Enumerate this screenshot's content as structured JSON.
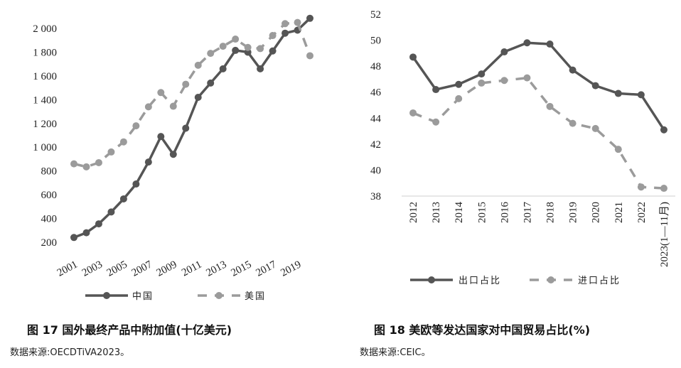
{
  "chart_data": [
    {
      "type": "line",
      "caption": "图 17  国外最终产品中附加值(十亿美元)",
      "source": "数据来源:OECDTiVA2023。",
      "x": [
        2001,
        2002,
        2003,
        2004,
        2005,
        2006,
        2007,
        2008,
        2009,
        2010,
        2011,
        2012,
        2013,
        2014,
        2015,
        2016,
        2017,
        2018,
        2019,
        2020
      ],
      "x_tick_labels": [
        "2001",
        "2003",
        "2005",
        "2007",
        "2009",
        "2011",
        "2013",
        "2015",
        "2017",
        "2019"
      ],
      "y_tick_labels": [
        "200",
        "400",
        "600",
        "800",
        "1 000",
        "1 200",
        "1 400",
        "1 600",
        "1 800",
        "2 000"
      ],
      "ylim": [
        200,
        2000
      ],
      "grid": false,
      "legend_position": "bottom",
      "series": [
        {
          "name": "中国",
          "style": "solid",
          "color": "#555555",
          "values": [
            240,
            280,
            355,
            455,
            565,
            690,
            875,
            1090,
            940,
            1160,
            1420,
            1540,
            1660,
            1815,
            1800,
            1660,
            1810,
            1960,
            1985,
            2085
          ]
        },
        {
          "name": "美国",
          "style": "dashed",
          "color": "#9b9b9b",
          "values": [
            860,
            835,
            870,
            960,
            1045,
            1180,
            1340,
            1460,
            1345,
            1530,
            1690,
            1790,
            1850,
            1910,
            1840,
            1830,
            1940,
            2040,
            2050,
            1770
          ]
        }
      ]
    },
    {
      "type": "line",
      "caption": "图 18  美欧等发达国家对中国贸易占比(%)",
      "source": "数据来源:CEIC。",
      "categories": [
        "2012",
        "2013",
        "2014",
        "2015",
        "2016",
        "2017",
        "2018",
        "2019",
        "2020",
        "2021",
        "2022",
        "2023(1—11月)"
      ],
      "y_tick_labels": [
        "38",
        "40",
        "42",
        "44",
        "46",
        "48",
        "50",
        "52"
      ],
      "ylim": [
        38,
        52
      ],
      "grid": false,
      "legend_position": "bottom",
      "series": [
        {
          "name": "出口占比",
          "style": "solid",
          "color": "#555555",
          "values": [
            48.7,
            46.2,
            46.6,
            47.4,
            49.1,
            49.8,
            49.7,
            47.7,
            46.5,
            45.9,
            45.8,
            43.1
          ]
        },
        {
          "name": "进口占比",
          "style": "dashed",
          "color": "#9b9b9b",
          "values": [
            44.4,
            43.7,
            45.5,
            46.7,
            46.9,
            47.1,
            44.9,
            43.6,
            43.2,
            41.6,
            38.7,
            38.6
          ]
        }
      ]
    }
  ]
}
